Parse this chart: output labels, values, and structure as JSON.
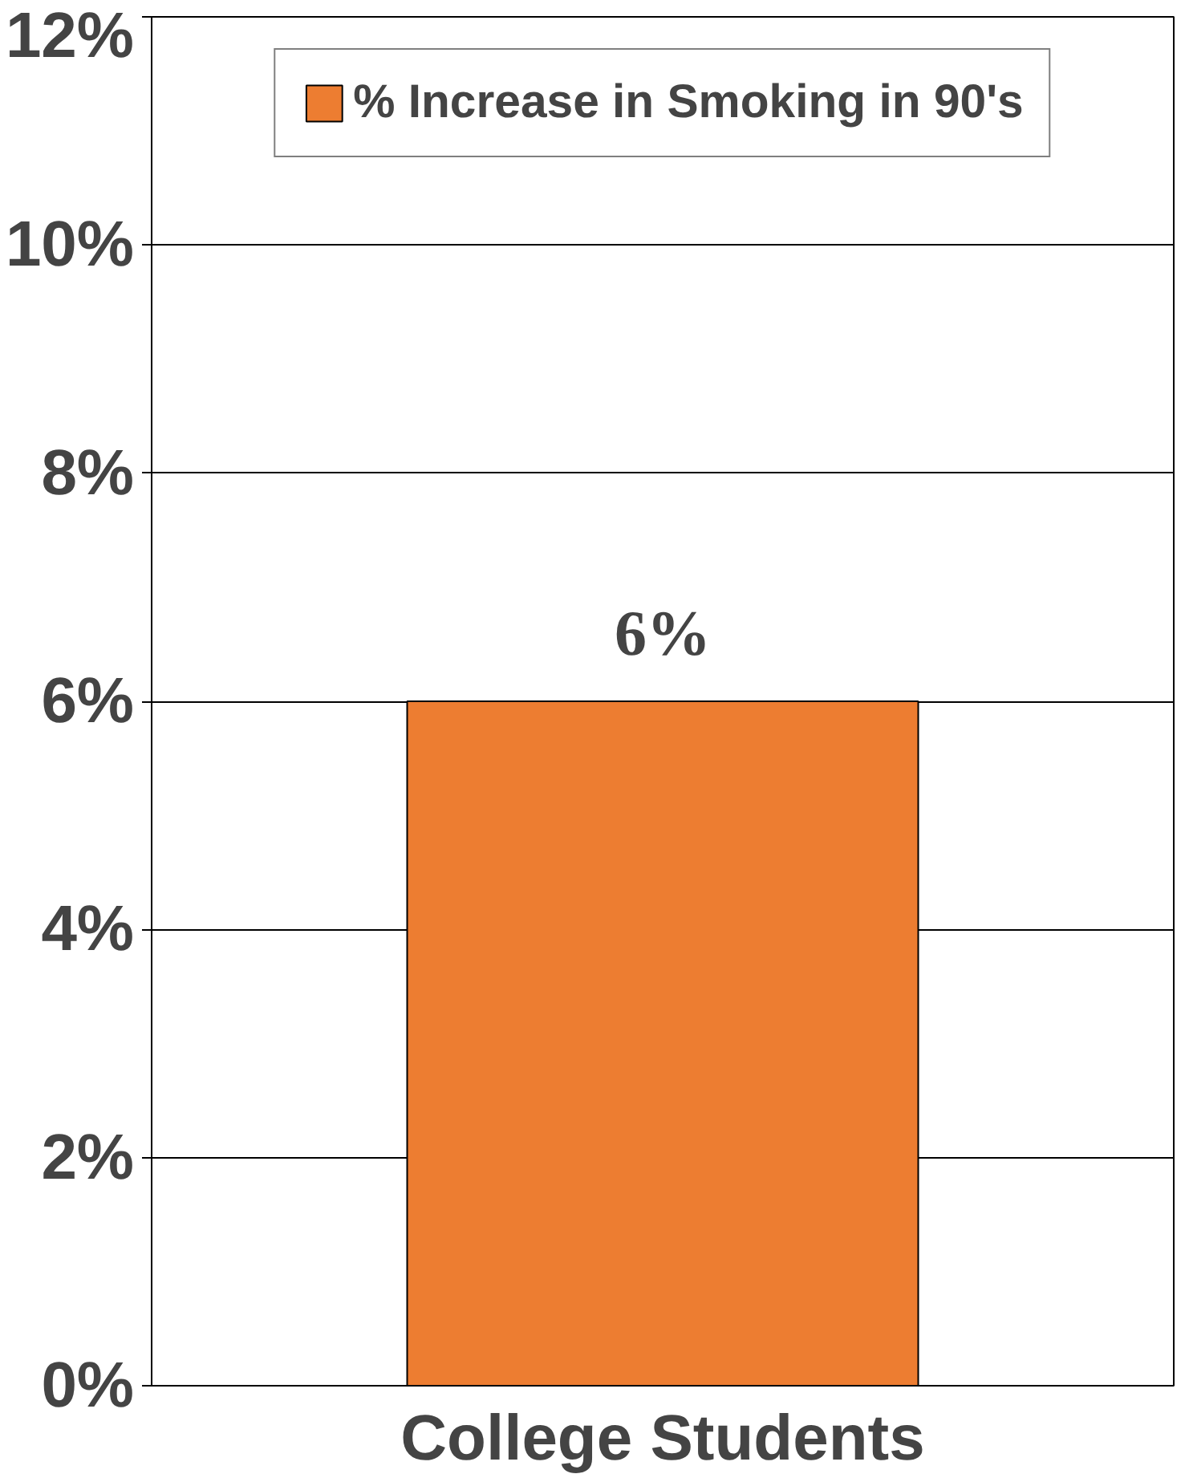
{
  "chart_data": {
    "type": "bar",
    "categories": [
      "College Students"
    ],
    "series": [
      {
        "name": "% Increase in Smoking in 90's",
        "color": "#ed7d31",
        "values": [
          6
        ]
      }
    ],
    "value_labels": [
      "6%"
    ],
    "ylim": [
      0,
      12
    ],
    "yticks": [
      {
        "value": 0,
        "label": "0%"
      },
      {
        "value": 2,
        "label": "2%"
      },
      {
        "value": 4,
        "label": "4%"
      },
      {
        "value": 6,
        "label": "6%"
      },
      {
        "value": 8,
        "label": "8%"
      },
      {
        "value": 10,
        "label": "10%"
      },
      {
        "value": 12,
        "label": "12%"
      }
    ],
    "grid": "y",
    "legend": "top"
  }
}
